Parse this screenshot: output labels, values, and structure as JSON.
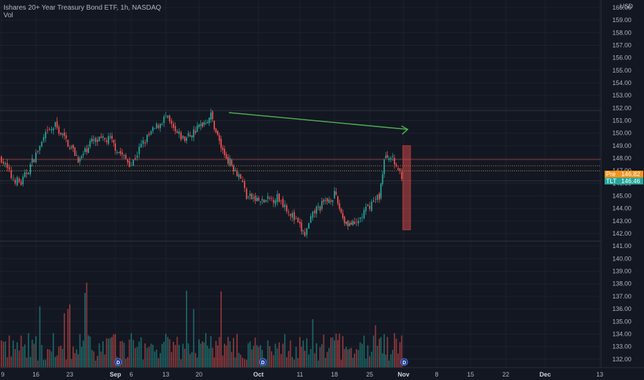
{
  "header": {
    "title": "Ishares 20+ Year Treasury Bond ETF, 1h, NASDAQ",
    "volume_label": "Vol"
  },
  "price_axis": {
    "currency": "USD",
    "ticks": [
      "160.00",
      "159.00",
      "158.00",
      "157.00",
      "156.00",
      "155.00",
      "154.00",
      "153.00",
      "152.00",
      "151.00",
      "150.00",
      "149.00",
      "148.00",
      "147.00",
      "146.00",
      "145.00",
      "144.00",
      "143.00",
      "142.00",
      "141.00",
      "140.00",
      "139.00",
      "138.00",
      "137.00",
      "136.00",
      "135.00",
      "134.00",
      "133.00",
      "132.00"
    ]
  },
  "time_axis": {
    "labels": [
      "9",
      "16",
      "23",
      "Sep",
      "6",
      "13",
      "20",
      "Oct",
      "11",
      "18",
      "25",
      "Nov",
      "8",
      "15",
      "22",
      "Dec",
      "13"
    ]
  },
  "tags": {
    "pre_label": "Pre",
    "pre_value": "146.82",
    "last_label": "TLT",
    "last_value": "146.46"
  },
  "dividend_marker_label": "D",
  "colors": {
    "background": "#131722",
    "up": "#26a69a",
    "down": "#ef5350",
    "pre": "#f7931a",
    "arrow": "#4caf50",
    "grid": "#1e222d"
  },
  "chart_data": {
    "type": "candlestick",
    "symbol": "TLT",
    "interval": "1h",
    "y_range": [
      131.6,
      160.3
    ],
    "x_sessions": [
      "9",
      "16",
      "23",
      "Sep",
      "6",
      "13",
      "20",
      "Oct",
      "11",
      "18",
      "25",
      "Nov"
    ],
    "close_path": [
      {
        "x": "Aug 9",
        "y": 148.0
      },
      {
        "x": "Aug 11",
        "y": 146.5
      },
      {
        "x": "Aug 13",
        "y": 146.0
      },
      {
        "x": "Aug 16",
        "y": 148.3
      },
      {
        "x": "Aug 18",
        "y": 149.8
      },
      {
        "x": "Aug 20",
        "y": 150.6
      },
      {
        "x": "Aug 23",
        "y": 149.0
      },
      {
        "x": "Aug 25",
        "y": 147.8
      },
      {
        "x": "Aug 27",
        "y": 149.3
      },
      {
        "x": "Aug 31",
        "y": 149.5
      },
      {
        "x": "Sep 2",
        "y": 148.5
      },
      {
        "x": "Sep 6",
        "y": 147.5
      },
      {
        "x": "Sep 8",
        "y": 149.0
      },
      {
        "x": "Sep 10",
        "y": 150.0
      },
      {
        "x": "Sep 13",
        "y": 151.3
      },
      {
        "x": "Sep 15",
        "y": 150.0
      },
      {
        "x": "Sep 17",
        "y": 149.5
      },
      {
        "x": "Sep 20",
        "y": 150.5
      },
      {
        "x": "Sep 22",
        "y": 151.4
      },
      {
        "x": "Sep 24",
        "y": 148.5
      },
      {
        "x": "Sep 27",
        "y": 146.5
      },
      {
        "x": "Sep 28",
        "y": 145.0
      },
      {
        "x": "Oct 1",
        "y": 144.5
      },
      {
        "x": "Oct 5",
        "y": 144.9
      },
      {
        "x": "Oct 7",
        "y": 144.3
      },
      {
        "x": "Oct 11",
        "y": 142.5
      },
      {
        "x": "Oct 12",
        "y": 141.9
      },
      {
        "x": "Oct 14",
        "y": 143.8
      },
      {
        "x": "Oct 18",
        "y": 145.1
      },
      {
        "x": "Oct 20",
        "y": 143.0
      },
      {
        "x": "Oct 22",
        "y": 142.6
      },
      {
        "x": "Oct 25",
        "y": 144.3
      },
      {
        "x": "Oct 27",
        "y": 145.0
      },
      {
        "x": "Oct 28",
        "y": 147.8
      },
      {
        "x": "Oct 29",
        "y": 148.3
      },
      {
        "x": "Nov 1",
        "y": 146.46
      }
    ],
    "last_close": 146.46,
    "premarket": 146.82,
    "arrow_annotation": {
      "from": {
        "x": "Sep 22",
        "y": 151.8
      },
      "to": {
        "x": "Nov 1",
        "y": 150.3
      }
    },
    "highlight_box": {
      "x": "Nov 1",
      "y_from": 142.3,
      "y_to": 149.0
    },
    "horizontal_levels": [
      151.8,
      147.9,
      147.4,
      147.0,
      146.2,
      141.4
    ],
    "dividends": [
      "Sep 1",
      "Oct 1",
      "Nov 1"
    ]
  }
}
